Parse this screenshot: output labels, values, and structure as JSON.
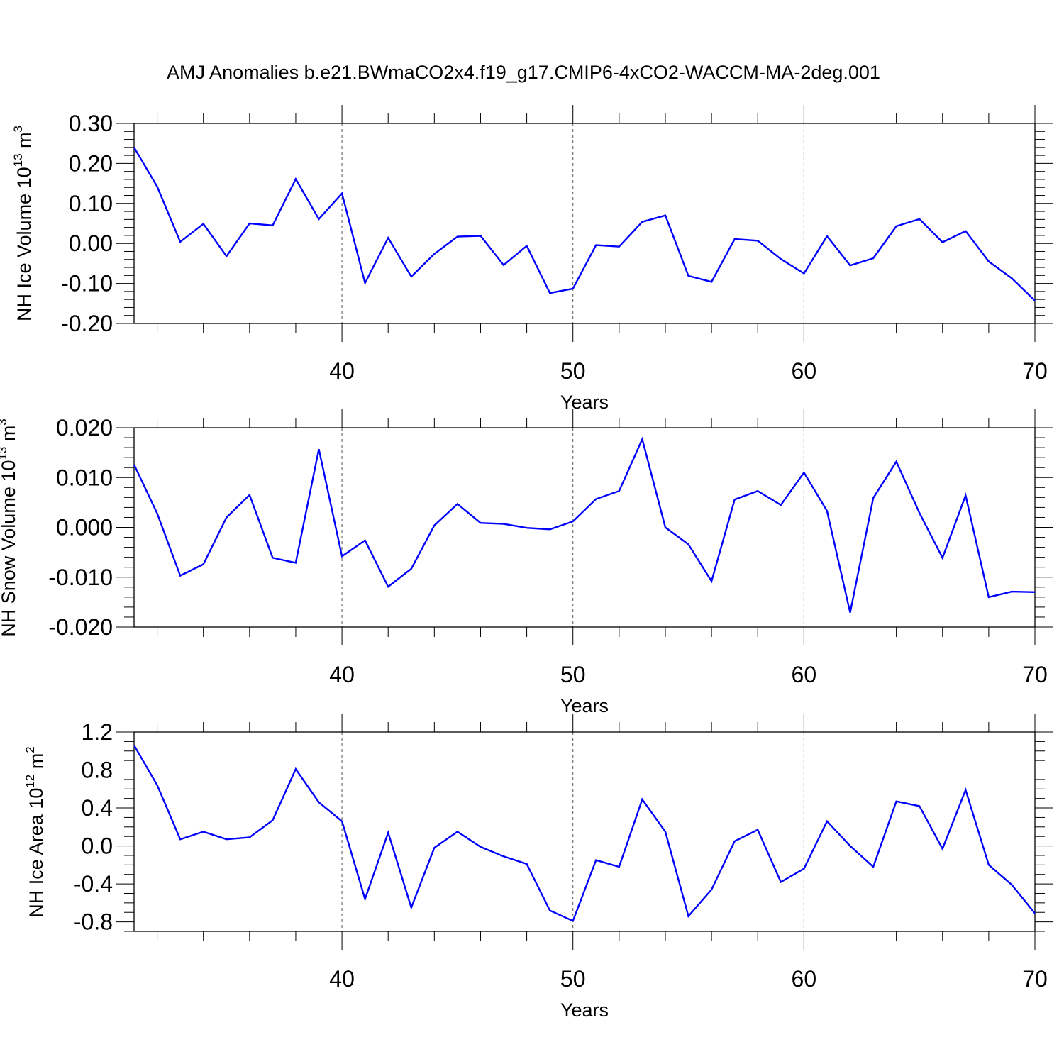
{
  "figure_title": "AMJ Anomalies b.e21.BWmaCO2x4.f19_g17.CMIP6-4xCO2-WACCM-MA-2deg.001",
  "colors": {
    "line": "#0000ff",
    "axes": "#000000",
    "gridline": "#555555",
    "background": "#ffffff"
  },
  "chart_data": [
    {
      "type": "line",
      "title": "AMJ Anomalies b.e21.BWmaCO2x4.f19_g17.CMIP6-4xCO2-WACCM-MA-2deg.001",
      "xlabel": "Years",
      "ylabel": {
        "text": "NH Ice Volume 10",
        "sup": "13",
        "unit": " m",
        "unit_sup": "3"
      },
      "xlim": [
        31,
        70
      ],
      "ylim": [
        -0.2,
        0.3
      ],
      "yticks": [
        -0.2,
        -0.1,
        0.0,
        0.1,
        0.2,
        0.3
      ],
      "yticklabels": [
        "-0.20",
        "-0.10",
        "0.00",
        "0.10",
        "0.20",
        "0.30"
      ],
      "xticks": [
        40,
        50,
        60,
        70
      ],
      "xticklabels": [
        "40",
        "50",
        "60",
        "70"
      ],
      "xgrid": [
        40,
        50,
        60
      ],
      "x": [
        31,
        32,
        33,
        34,
        35,
        36,
        37,
        38,
        39,
        40,
        41,
        42,
        43,
        44,
        45,
        46,
        47,
        48,
        49,
        50,
        51,
        52,
        53,
        54,
        55,
        56,
        57,
        58,
        59,
        60,
        61,
        62,
        63,
        64,
        65,
        66,
        67,
        68,
        69,
        70
      ],
      "values": [
        0.24,
        0.142,
        0.004,
        0.049,
        -0.032,
        0.05,
        0.045,
        0.161,
        0.061,
        0.125,
        -0.099,
        0.014,
        -0.083,
        -0.026,
        0.017,
        0.019,
        -0.054,
        -0.006,
        -0.124,
        -0.113,
        -0.004,
        -0.008,
        0.054,
        0.07,
        -0.081,
        -0.096,
        0.011,
        0.007,
        -0.039,
        -0.075,
        0.018,
        -0.055,
        -0.037,
        0.043,
        0.061,
        0.003,
        0.031,
        -0.045,
        -0.087,
        -0.143
      ]
    },
    {
      "type": "line",
      "xlabel": "Years",
      "ylabel": {
        "text": "NH Snow Volume 10",
        "sup": "13",
        "unit": " m",
        "unit_sup": "3"
      },
      "xlim": [
        31,
        70
      ],
      "ylim": [
        -0.02,
        0.02
      ],
      "yticks": [
        -0.02,
        -0.01,
        0.0,
        0.01,
        0.02
      ],
      "yticklabels": [
        "-0.020",
        "-0.010",
        "0.000",
        "0.010",
        "0.020"
      ],
      "xticks": [
        40,
        50,
        60,
        70
      ],
      "xticklabels": [
        "40",
        "50",
        "60",
        "70"
      ],
      "xgrid": [
        40,
        50,
        60
      ],
      "x": [
        31,
        32,
        33,
        34,
        35,
        36,
        37,
        38,
        39,
        40,
        41,
        42,
        43,
        44,
        45,
        46,
        47,
        48,
        49,
        50,
        51,
        52,
        53,
        54,
        55,
        56,
        57,
        58,
        59,
        60,
        61,
        62,
        63,
        64,
        65,
        66,
        67,
        68,
        69,
        70
      ],
      "values": [
        0.0126,
        0.0028,
        -0.0097,
        -0.0074,
        0.002,
        0.0065,
        -0.0061,
        -0.0071,
        0.0157,
        -0.0058,
        -0.0026,
        -0.0119,
        -0.0083,
        0.0004,
        0.0047,
        0.0009,
        0.0007,
        -0.0001,
        -0.0004,
        0.0012,
        0.0057,
        0.0073,
        0.0177,
        0.0,
        -0.0034,
        -0.0108,
        0.0056,
        0.0073,
        0.0045,
        0.011,
        0.0033,
        -0.0171,
        0.0059,
        0.0132,
        0.0029,
        -0.0061,
        0.0064,
        -0.014,
        -0.0129,
        -0.013
      ]
    },
    {
      "type": "line",
      "xlabel": "Years",
      "ylabel": {
        "text": "NH Ice Area 10",
        "sup": "12",
        "unit": " m",
        "unit_sup": "2"
      },
      "xlim": [
        31,
        70
      ],
      "ylim": [
        -0.9,
        1.2
      ],
      "yticks": [
        -0.8,
        -0.4,
        0.0,
        0.4,
        0.8,
        1.2
      ],
      "yticklabels": [
        "-0.8",
        "-0.4",
        "0.0",
        "0.4",
        "0.8",
        "1.2"
      ],
      "xticks": [
        40,
        50,
        60,
        70
      ],
      "xticklabels": [
        "40",
        "50",
        "60",
        "70"
      ],
      "xgrid": [
        40,
        50,
        60
      ],
      "x": [
        31,
        32,
        33,
        34,
        35,
        36,
        37,
        38,
        39,
        40,
        41,
        42,
        43,
        44,
        45,
        46,
        47,
        48,
        49,
        50,
        51,
        52,
        53,
        54,
        55,
        56,
        57,
        58,
        59,
        60,
        61,
        62,
        63,
        64,
        65,
        66,
        67,
        68,
        69,
        70
      ],
      "values": [
        1.06,
        0.64,
        0.07,
        0.15,
        0.07,
        0.09,
        0.27,
        0.81,
        0.46,
        0.26,
        -0.56,
        0.14,
        -0.65,
        -0.02,
        0.15,
        -0.01,
        -0.11,
        -0.19,
        -0.68,
        -0.79,
        -0.15,
        -0.22,
        0.49,
        0.15,
        -0.74,
        -0.46,
        0.05,
        0.17,
        -0.38,
        -0.24,
        0.26,
        0.0,
        -0.22,
        0.47,
        0.42,
        -0.03,
        0.59,
        -0.2,
        -0.41,
        -0.71
      ]
    }
  ]
}
